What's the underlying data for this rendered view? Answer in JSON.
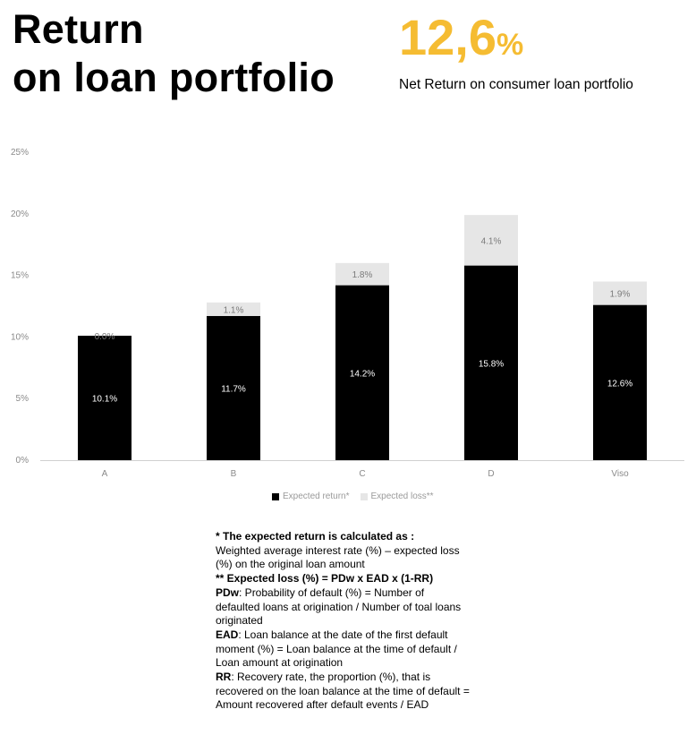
{
  "header": {
    "title_line1": "Return",
    "title_line2": "on loan portfolio",
    "kpi_value": "12,6",
    "kpi_unit": "%",
    "kpi_caption": "Net Return on consumer loan portfolio"
  },
  "colors": {
    "accent": "#F5BC32",
    "expected_return": "#000000",
    "expected_loss": "#E6E6E6"
  },
  "chart_data": {
    "type": "bar",
    "stacked": true,
    "categories": [
      "A",
      "B",
      "C",
      "D",
      "Viso"
    ],
    "series": [
      {
        "name": "Expected return*",
        "values": [
          10.1,
          11.7,
          14.2,
          15.8,
          12.6
        ],
        "labels": [
          "10.1%",
          "11.7%",
          "14.2%",
          "15.8%",
          "12.6%"
        ]
      },
      {
        "name": "Expected loss**",
        "values": [
          0.0,
          1.1,
          1.8,
          4.1,
          1.9
        ],
        "labels": [
          "0.0%",
          "1.1%",
          "1.8%",
          "4.1%",
          "1.9%"
        ]
      }
    ],
    "ylim": [
      0,
      25
    ],
    "yticks": [
      0,
      5,
      10,
      15,
      20,
      25
    ],
    "ytick_labels": [
      "0%",
      "5%",
      "10%",
      "15%",
      "20%",
      "25%"
    ],
    "grid": false,
    "legend_position": "bottom"
  },
  "notes": {
    "l1": "* The expected return is calculated as :",
    "l2": "Weighted average interest rate (%) – expected loss (%) on the original loan amount",
    "l3": "** Expected loss (%) = PDw x EAD x (1-RR)",
    "l4_term": "PDw",
    "l4_text": ": Probability of default (%) = Number of defaulted loans at origination / Number of toal loans originated",
    "l5_term": "EAD",
    "l5_text": ": Loan balance at the date of the first default moment (%) = Loan balance at the time of default / Loan amount at origination",
    "l6_term": "RR",
    "l6_text": ": Recovery rate, the proportion (%), that is recovered on the loan balance at the time of default = Amount recovered after default events / EAD"
  }
}
